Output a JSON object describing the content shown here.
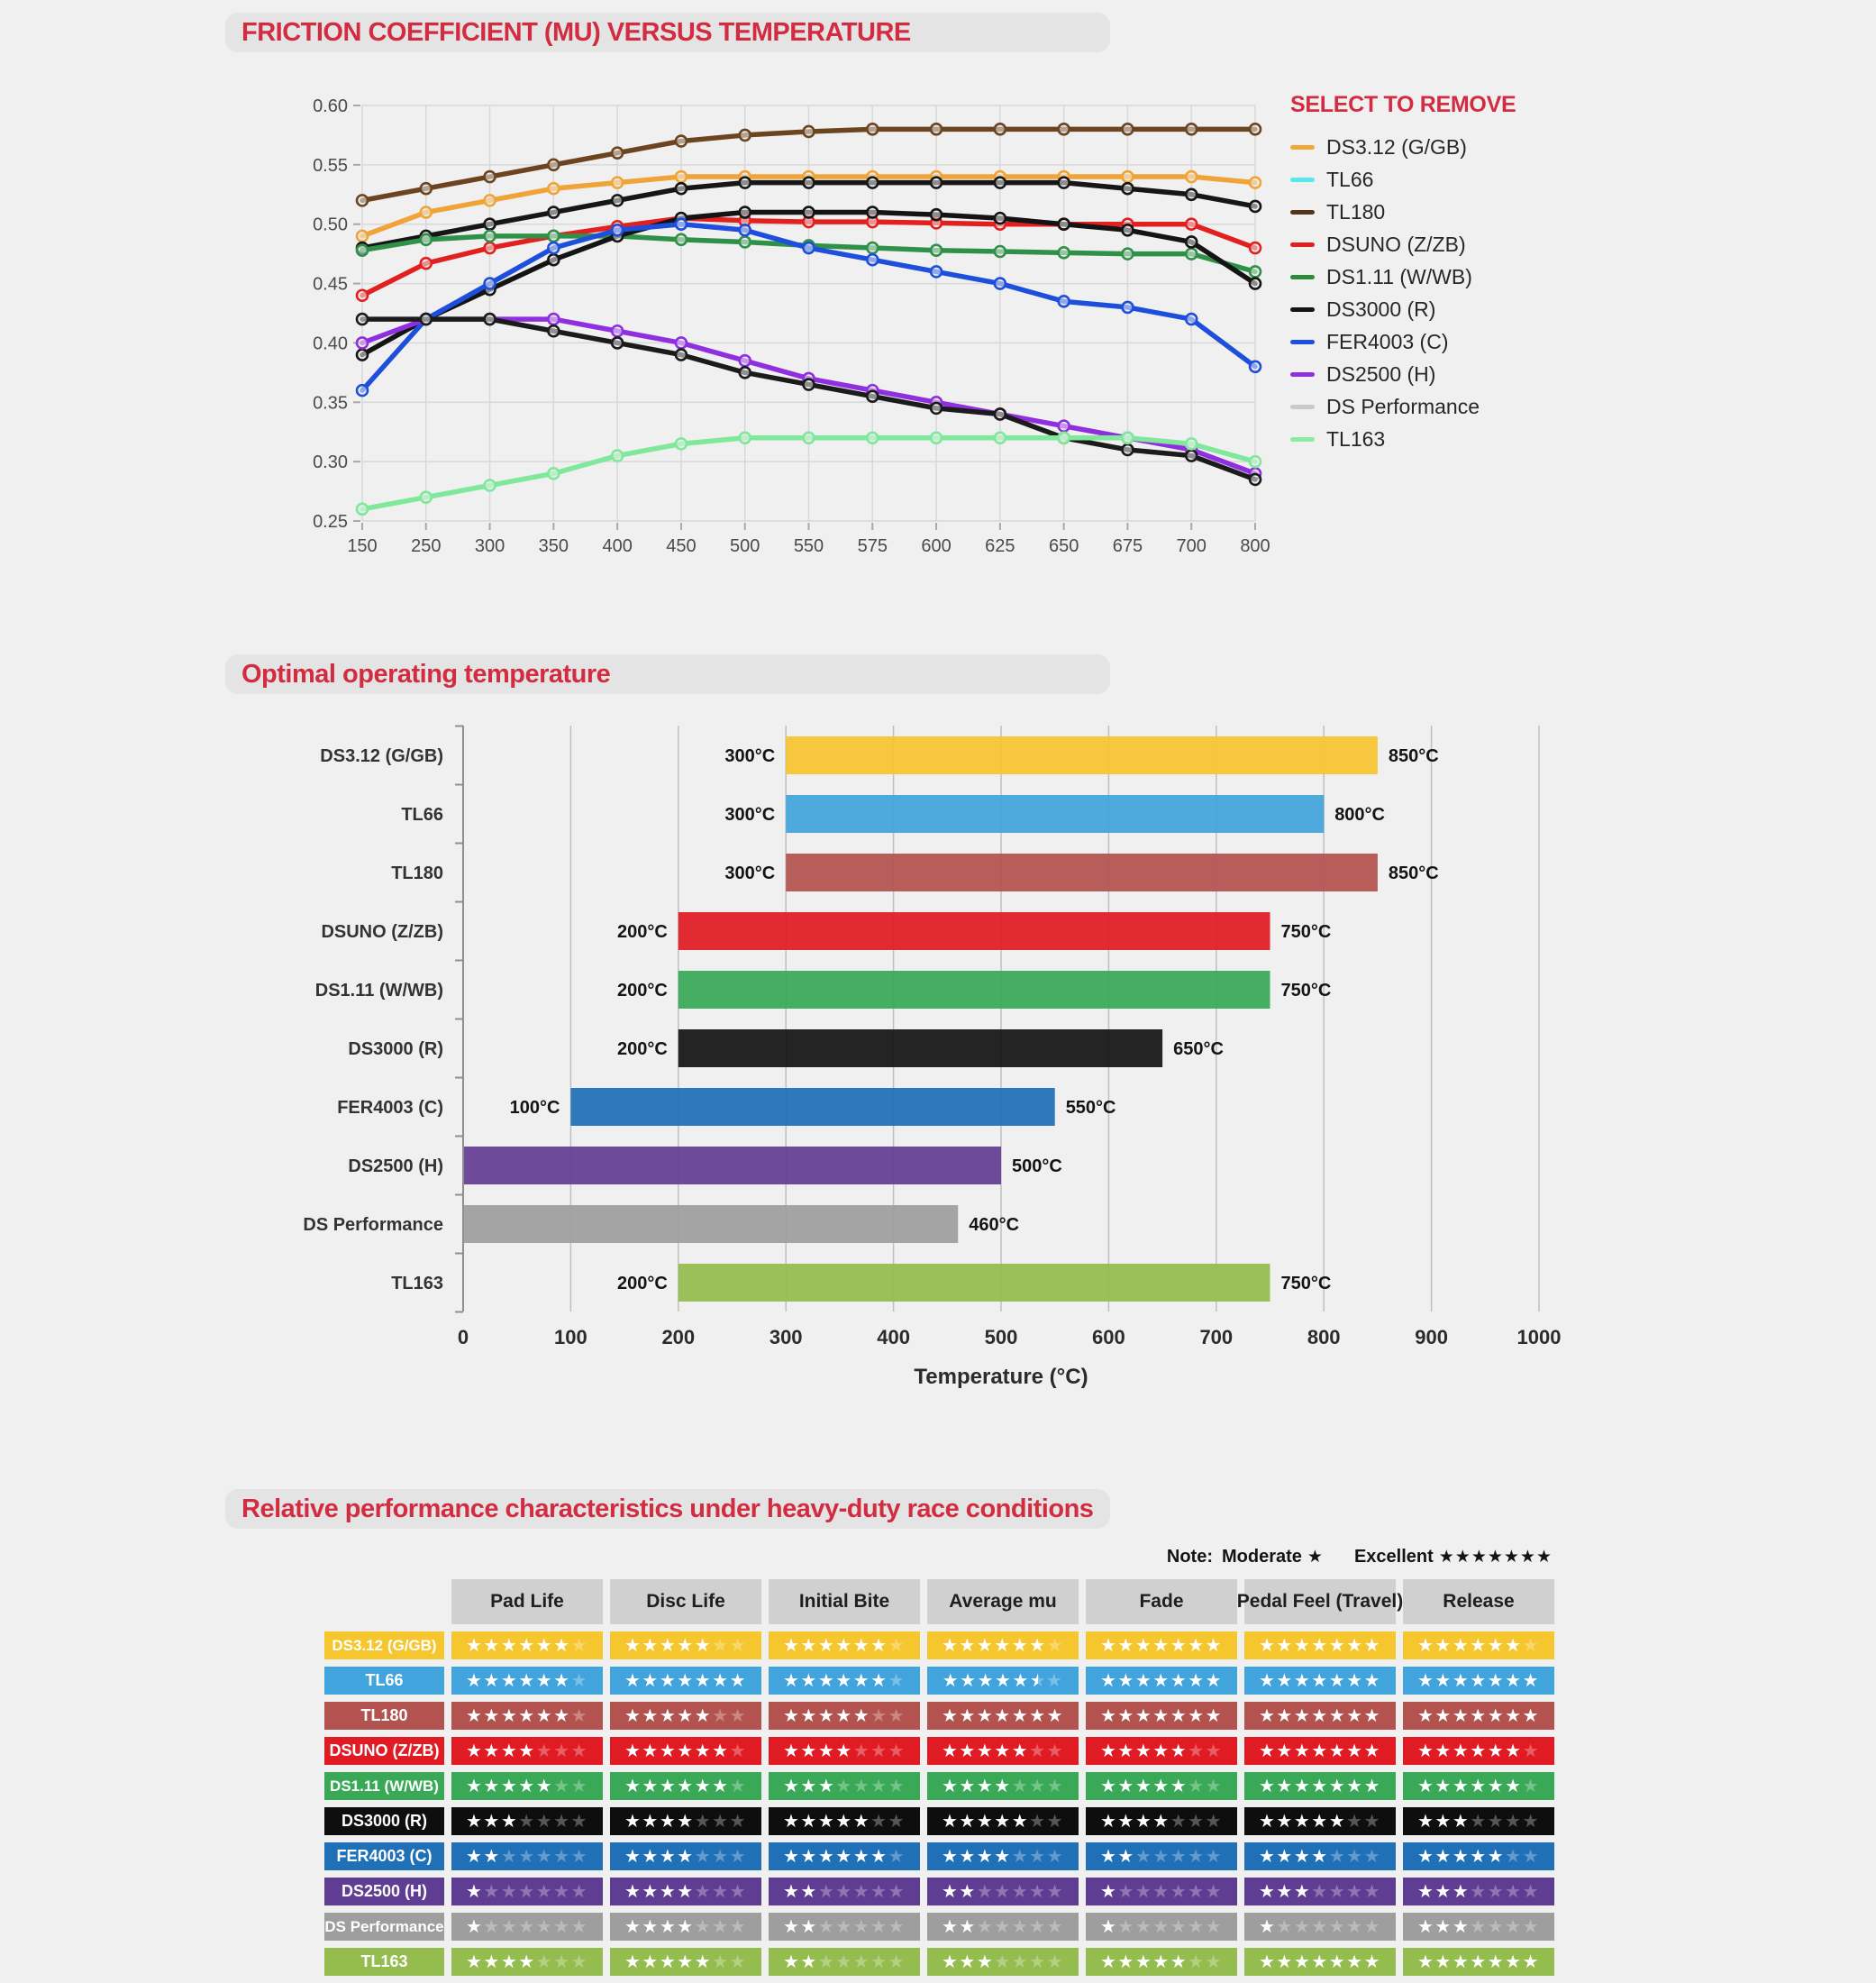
{
  "page": {
    "bg": "#f0f0f1",
    "accent_red": "#d32b3f"
  },
  "chart_data": [
    {
      "type": "line",
      "title": "FRICTION COEFFICIENT (MU) VERSUS TEMPERATURE",
      "legend_title": "SELECT TO REMOVE",
      "legend_position": "right",
      "grid": true,
      "ylim": [
        0.25,
        0.6
      ],
      "y_ticks": [
        0.25,
        0.3,
        0.35,
        0.4,
        0.45,
        0.5,
        0.55,
        0.6
      ],
      "x_categories": [
        "150",
        "250",
        "300",
        "350",
        "400",
        "450",
        "500",
        "550",
        "575",
        "600",
        "625",
        "650",
        "675",
        "700",
        "800"
      ],
      "series": [
        {
          "name": "DS3.12 (G/GB)",
          "legend_color": "#F2A73B",
          "line_color": "#F0A437",
          "values": [
            0.49,
            0.51,
            0.52,
            0.53,
            0.535,
            0.54,
            0.54,
            0.54,
            0.54,
            0.54,
            0.54,
            0.54,
            0.54,
            0.54,
            0.535
          ]
        },
        {
          "name": "TL66",
          "legend_color": "#57E9EC",
          "line_color": "#161616",
          "values": [
            0.48,
            0.49,
            0.5,
            0.51,
            0.52,
            0.53,
            0.535,
            0.535,
            0.535,
            0.535,
            0.535,
            0.535,
            0.53,
            0.525,
            0.515
          ]
        },
        {
          "name": "TL180",
          "legend_color": "#54351B",
          "line_color": "#6C4520",
          "values": [
            0.52,
            0.53,
            0.54,
            0.55,
            0.56,
            0.57,
            0.575,
            0.578,
            0.58,
            0.58,
            0.58,
            0.58,
            0.58,
            0.58,
            0.58
          ]
        },
        {
          "name": "DSUNO (Z/ZB)",
          "legend_color": "#E2201F",
          "line_color": "#E2201F",
          "values": [
            0.44,
            0.467,
            0.48,
            0.49,
            0.498,
            0.505,
            0.503,
            0.502,
            0.502,
            0.501,
            0.5,
            0.5,
            0.5,
            0.5,
            0.48
          ]
        },
        {
          "name": "DS1.11 (W/WB)",
          "legend_color": "#2E8B3B",
          "line_color": "#2E9147",
          "values": [
            0.478,
            0.487,
            0.49,
            0.49,
            0.49,
            0.487,
            0.485,
            0.482,
            0.48,
            0.478,
            0.477,
            0.476,
            0.475,
            0.475,
            0.46
          ]
        },
        {
          "name": "DS3000 (R)",
          "legend_color": "#141414",
          "line_color": "#141414",
          "values": [
            0.39,
            0.42,
            0.445,
            0.47,
            0.49,
            0.505,
            0.51,
            0.51,
            0.51,
            0.508,
            0.505,
            0.5,
            0.495,
            0.485,
            0.45
          ]
        },
        {
          "name": "FER4003 (C)",
          "legend_color": "#1E4FDC",
          "line_color": "#1E4FDC",
          "values": [
            0.36,
            0.42,
            0.45,
            0.48,
            0.495,
            0.5,
            0.495,
            0.48,
            0.47,
            0.46,
            0.45,
            0.435,
            0.43,
            0.42,
            0.38
          ]
        },
        {
          "name": "DS2500 (H)",
          "legend_color": "#8F2FE0",
          "line_color": "#8F2FE0",
          "values": [
            0.4,
            0.42,
            0.42,
            0.42,
            0.41,
            0.4,
            0.385,
            0.37,
            0.36,
            0.35,
            0.34,
            0.33,
            0.32,
            0.31,
            0.29
          ]
        },
        {
          "name": "DS Performance",
          "legend_color": "#C9C9C9",
          "line_color": "#1B1B1B",
          "values": [
            0.42,
            0.42,
            0.42,
            0.41,
            0.4,
            0.39,
            0.375,
            0.365,
            0.355,
            0.345,
            0.34,
            0.32,
            0.31,
            0.305,
            0.285
          ]
        },
        {
          "name": "TL163",
          "legend_color": "#8BEBA2",
          "line_color": "#7FE89A",
          "values": [
            0.26,
            0.27,
            0.28,
            0.29,
            0.305,
            0.315,
            0.32,
            0.32,
            0.32,
            0.32,
            0.32,
            0.32,
            0.32,
            0.315,
            0.3
          ]
        }
      ]
    },
    {
      "type": "bar",
      "title": "Optimal operating temperature",
      "orientation": "horizontal",
      "xlabel": "Temperature (°C)",
      "xlim": [
        0,
        1000
      ],
      "x_ticks": [
        0,
        100,
        200,
        300,
        400,
        500,
        600,
        700,
        800,
        900,
        1000
      ],
      "bars": [
        {
          "label": "DS3.12 (G/GB)",
          "color": "#F7C52F",
          "start": 300,
          "end": 850,
          "start_label": "300°C",
          "end_label": "850°C"
        },
        {
          "label": "TL66",
          "color": "#42A4DC",
          "start": 300,
          "end": 800,
          "start_label": "300°C",
          "end_label": "800°C"
        },
        {
          "label": "TL180",
          "color": "#B35350",
          "start": 300,
          "end": 850,
          "start_label": "300°C",
          "end_label": "850°C"
        },
        {
          "label": "DSUNO (Z/ZB)",
          "color": "#E01B24",
          "start": 200,
          "end": 750,
          "start_label": "200°C",
          "end_label": "750°C"
        },
        {
          "label": "DS1.11 (W/WB)",
          "color": "#39A957",
          "start": 200,
          "end": 750,
          "start_label": "200°C",
          "end_label": "750°C"
        },
        {
          "label": "DS3000 (R)",
          "color": "#141414",
          "start": 200,
          "end": 650,
          "start_label": "200°C",
          "end_label": "650°C"
        },
        {
          "label": "FER4003 (C)",
          "color": "#1F70B6",
          "start": 100,
          "end": 550,
          "start_label": "100°C",
          "end_label": "550°C"
        },
        {
          "label": "DS2500 (H)",
          "color": "#643E93",
          "start": 0,
          "end": 500,
          "start_label": "",
          "end_label": "500°C"
        },
        {
          "label": "DS Performance",
          "color": "#9E9E9E",
          "start": 0,
          "end": 460,
          "start_label": "",
          "end_label": "460°C"
        },
        {
          "label": "TL163",
          "color": "#95BC4F",
          "start": 200,
          "end": 750,
          "start_label": "200°C",
          "end_label": "750°C"
        }
      ]
    },
    {
      "type": "table",
      "title": "Relative performance characteristics under heavy-duty race conditions",
      "note": {
        "label": "Note:",
        "moderate_label": "Moderate",
        "moderate_stars": 1,
        "excellent_label": "Excellent",
        "excellent_stars": 7
      },
      "columns": [
        "Pad Life",
        "Disc Life",
        "Initial Bite",
        "Average mu",
        "Fade",
        "Pedal Feel (Travel)",
        "Release"
      ],
      "max_stars": 7,
      "rows": [
        {
          "label": "DS3.12 (G/GB)",
          "color": "#F6C62F",
          "ratings": [
            6,
            5,
            6,
            6,
            7,
            7,
            6
          ]
        },
        {
          "label": "TL66",
          "color": "#42A4DC",
          "ratings": [
            6,
            7,
            6,
            5.5,
            7,
            7,
            7
          ]
        },
        {
          "label": "TL180",
          "color": "#B35350",
          "ratings": [
            6,
            5,
            5,
            7,
            7,
            7,
            7
          ]
        },
        {
          "label": "DSUNO (Z/ZB)",
          "color": "#E01B24",
          "ratings": [
            4,
            6,
            4,
            5,
            5,
            7,
            6
          ]
        },
        {
          "label": "DS1.11 (W/WB)",
          "color": "#39A957",
          "ratings": [
            5,
            6,
            3,
            4,
            5,
            7,
            6
          ]
        },
        {
          "label": "DS3000 (R)",
          "color": "#0E0E0E",
          "ratings": [
            3,
            4,
            5,
            5,
            4,
            5,
            3
          ]
        },
        {
          "label": "FER4003 (C)",
          "color": "#1F70B6",
          "ratings": [
            2,
            4,
            6,
            4,
            2,
            4,
            5
          ]
        },
        {
          "label": "DS2500 (H)",
          "color": "#5E3D92",
          "ratings": [
            1,
            4,
            2,
            2,
            1,
            3,
            3
          ]
        },
        {
          "label": "DS Performance",
          "color": "#9E9E9E",
          "ratings": [
            1,
            4,
            2,
            2,
            1,
            1,
            3
          ]
        },
        {
          "label": "TL163",
          "color": "#95BC4F",
          "ratings": [
            4,
            5,
            2,
            3,
            5,
            7,
            7
          ]
        }
      ]
    }
  ]
}
